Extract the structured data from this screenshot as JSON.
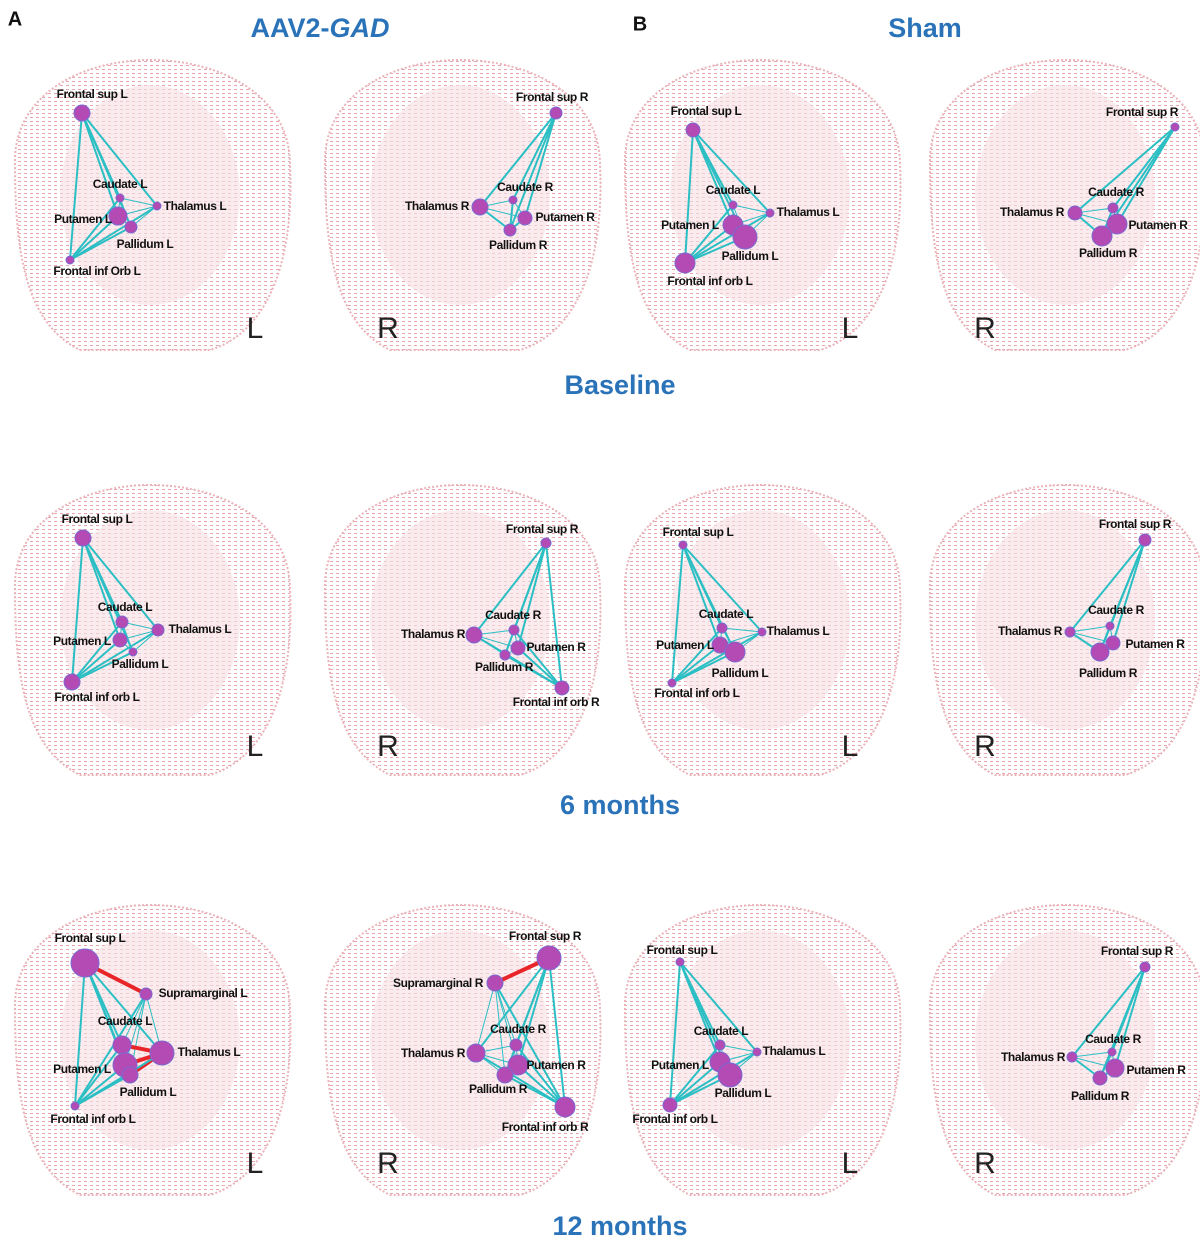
{
  "header": {
    "panel_a": "A",
    "panel_b": "B",
    "group_a": {
      "prefix": "AAV2-",
      "gene": "GAD"
    },
    "group_b": "Sham"
  },
  "rows": [
    {
      "title": "Baseline",
      "panels": [
        {
          "side": "L",
          "nodes": [
            "Frontal sup L",
            "Caudate L",
            "Thalamus L",
            "Putamen L",
            "Pallidum L",
            "Frontal inf Orb L"
          ]
        },
        {
          "side": "R",
          "nodes": [
            "Frontal sup R",
            "Caudate R",
            "Thalamus R",
            "Putamen R",
            "Pallidum R"
          ]
        },
        {
          "side": "L",
          "nodes": [
            "Frontal sup L",
            "Caudate L",
            "Thalamus L",
            "Putamen L",
            "Pallidum L",
            "Frontal inf orb L"
          ]
        },
        {
          "side": "R",
          "nodes": [
            "Frontal sup R",
            "Caudate R",
            "Thalamus R",
            "Putamen R",
            "Pallidum R"
          ]
        }
      ]
    },
    {
      "title": "6 months",
      "panels": [
        {
          "side": "L",
          "nodes": [
            "Frontal sup L",
            "Caudate L",
            "Thalamus L",
            "Putamen L",
            "Pallidum L",
            "Frontal inf orb L"
          ]
        },
        {
          "side": "R",
          "nodes": [
            "Frontal sup R",
            "Caudate R",
            "Thalamus R",
            "Putamen R",
            "Pallidum R",
            "Frontal inf orb R"
          ]
        },
        {
          "side": "L",
          "nodes": [
            "Frontal sup L",
            "Caudate L",
            "Thalamus L",
            "Putamen L",
            "Pallidum L",
            "Frontal inf orb L"
          ]
        },
        {
          "side": "R",
          "nodes": [
            "Frontal sup R",
            "Caudate R",
            "Thalamus R",
            "Putamen R",
            "Pallidum R"
          ]
        }
      ]
    },
    {
      "title": "12 months",
      "panels": [
        {
          "side": "L",
          "nodes": [
            "Frontal sup L",
            "Supramarginal L",
            "Caudate L",
            "Thalamus L",
            "Putamen L",
            "Pallidum L",
            "Frontal inf orb L"
          ]
        },
        {
          "side": "R",
          "nodes": [
            "Frontal sup R",
            "Supramarginal R",
            "Caudate R",
            "Thalamus R",
            "Putamen R",
            "Pallidum R",
            "Frontal inf orb R"
          ]
        },
        {
          "side": "L",
          "nodes": [
            "Frontal sup L",
            "Caudate L",
            "Thalamus L",
            "Putamen L",
            "Pallidum L",
            "Frontal inf orb L"
          ]
        },
        {
          "side": "R",
          "nodes": [
            "Frontal sup R",
            "Caudate R",
            "Thalamus R",
            "Putamen R",
            "Pallidum R"
          ]
        }
      ]
    }
  ]
}
